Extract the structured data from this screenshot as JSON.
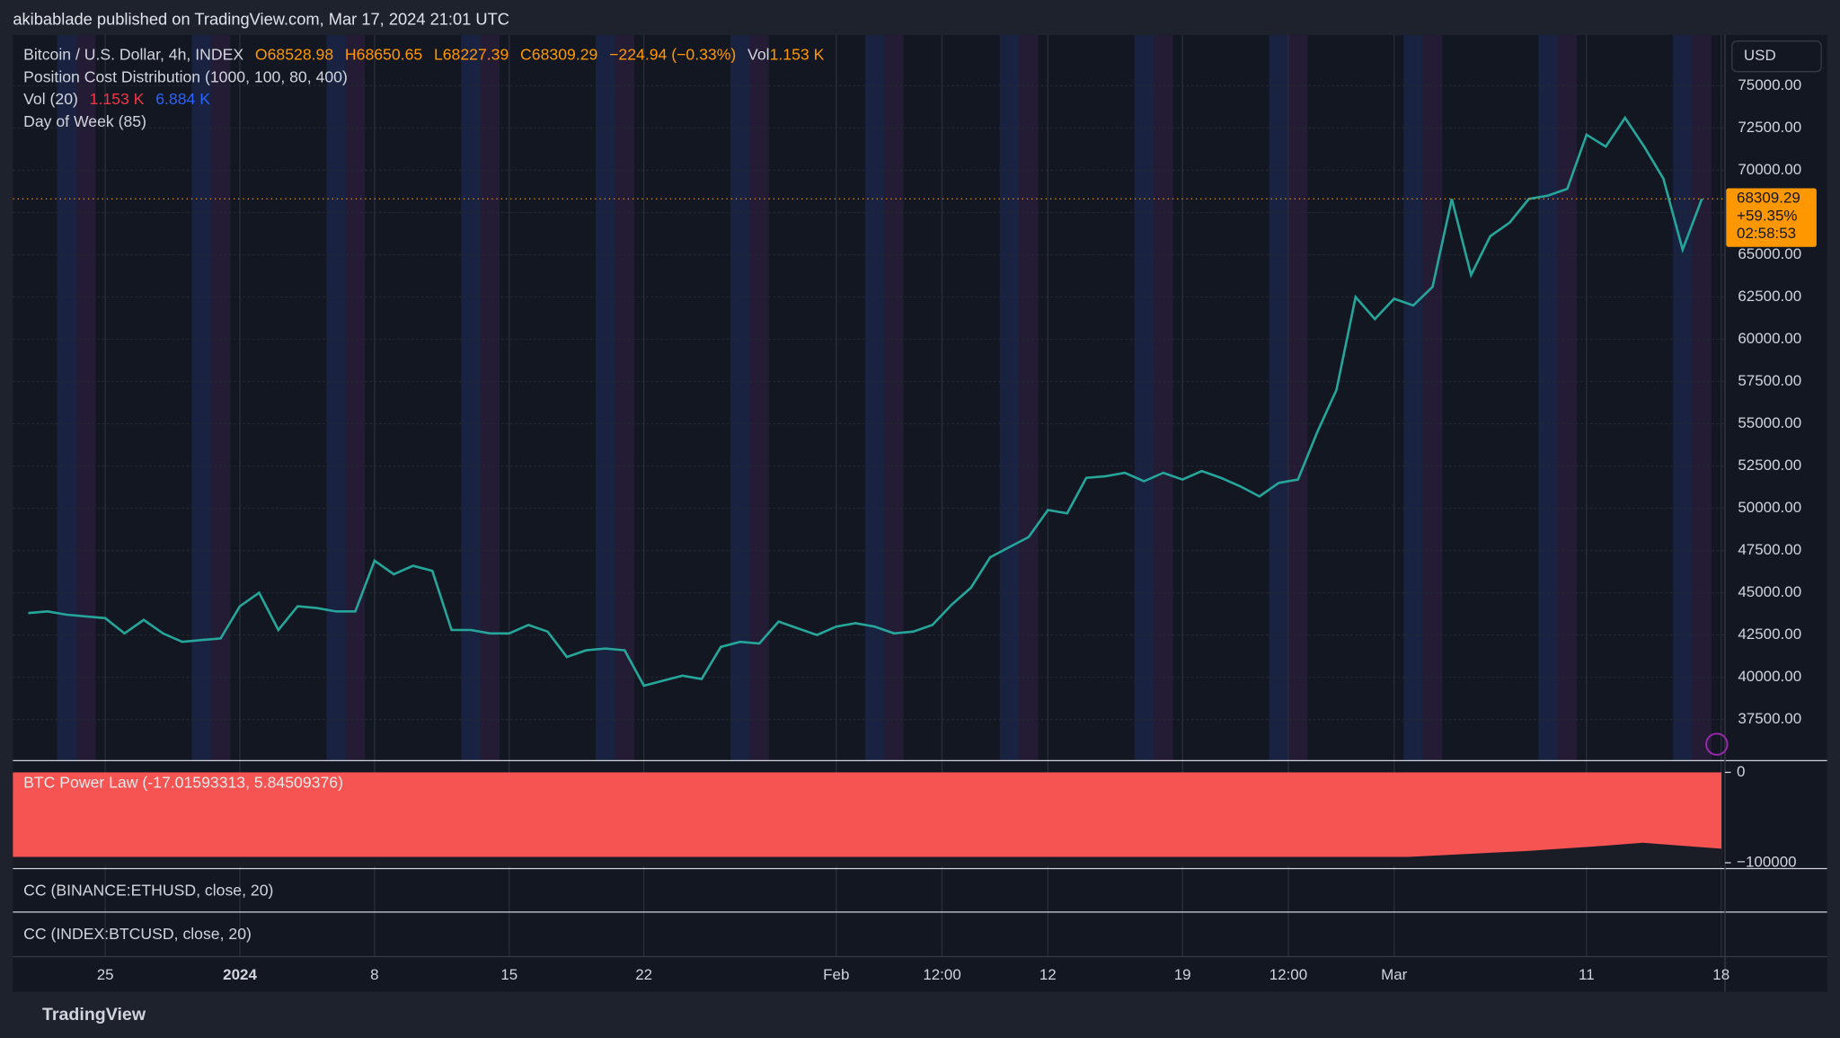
{
  "header": {
    "publisher": "akibablade published on TradingView.com, Mar 17, 2024 21:01 UTC"
  },
  "legend": {
    "symbol": "Bitcoin / U.S. Dollar, 4h, INDEX",
    "open": "O68528.98",
    "high": "H68650.65",
    "low": "L68227.39",
    "close": "C68309.29",
    "change": "−224.94 (−0.33%)",
    "vol_label": "Vol",
    "vol_value": "1.153 K"
  },
  "indicators": {
    "pcd": "Position Cost Distribution (1000, 100, 80, 400)",
    "vol": "Vol (20)",
    "vol_a": "1.153 K",
    "vol_b": "6.884 K",
    "dow": "Day of Week (85)"
  },
  "chart_data": {
    "type": "line",
    "color": "#26a69a",
    "x": [
      0,
      1,
      2,
      3,
      4,
      5,
      6,
      7,
      8,
      9,
      10,
      11,
      12,
      13,
      14,
      15,
      16,
      17,
      18,
      19,
      20,
      21,
      22,
      23,
      24,
      25,
      26,
      27,
      28,
      29,
      30,
      31,
      32,
      33,
      34,
      35,
      36,
      37,
      38,
      39,
      40,
      41,
      42,
      43,
      44,
      45,
      46,
      47,
      48,
      49,
      50,
      51,
      52,
      53,
      54,
      55,
      56,
      57,
      58,
      59,
      60,
      61,
      62,
      63,
      64,
      65,
      66,
      67,
      68,
      69,
      70,
      71,
      72,
      73,
      74,
      75,
      76,
      77,
      78,
      79,
      80,
      81,
      82,
      83,
      84,
      85,
      86,
      87
    ],
    "values": [
      43800,
      43900,
      43700,
      43600,
      43500,
      42600,
      43400,
      42600,
      42100,
      42200,
      42300,
      44200,
      45000,
      42800,
      44200,
      44100,
      43900,
      43900,
      46900,
      46100,
      46600,
      46300,
      42800,
      42800,
      42600,
      42600,
      43100,
      42700,
      41200,
      41600,
      41700,
      41600,
      39500,
      39800,
      40100,
      39900,
      41800,
      42100,
      42000,
      43300,
      42900,
      42500,
      43000,
      43200,
      43000,
      42600,
      42700,
      43100,
      44300,
      45300,
      47100,
      47700,
      48300,
      49900,
      49700,
      51800,
      51900,
      52100,
      51600,
      52100,
      51700,
      52200,
      51800,
      51300,
      50700,
      51500,
      51700,
      54500,
      57000,
      62500,
      61200,
      62400,
      62000,
      63100,
      68300,
      63800,
      66100,
      66900,
      68300,
      68500,
      68900,
      72100,
      71400,
      73100,
      71400,
      69500,
      65300,
      68309.29
    ],
    "xlim": [
      -0.8,
      88.2
    ],
    "xticks": [
      {
        "value": 4,
        "label": "25"
      },
      {
        "value": 11,
        "label": "2024"
      },
      {
        "value": 18,
        "label": "8"
      },
      {
        "value": 25,
        "label": "15"
      },
      {
        "value": 32,
        "label": "22"
      },
      {
        "value": 42,
        "label": "Feb"
      },
      {
        "value": 47.5,
        "label": "12:00"
      },
      {
        "value": 53,
        "label": "12"
      },
      {
        "value": 60,
        "label": "19"
      },
      {
        "value": 65.5,
        "label": "12:00"
      },
      {
        "value": 71,
        "label": "Mar"
      },
      {
        "value": 81,
        "label": "11"
      },
      {
        "value": 88,
        "label": "18"
      }
    ],
    "ylim": [
      35070,
      77990
    ],
    "yticks": [
      {
        "value": 37500,
        "label": "37500.00"
      },
      {
        "value": 40000,
        "label": "40000.00"
      },
      {
        "value": 42500,
        "label": "42500.00"
      },
      {
        "value": 45000,
        "label": "45000.00"
      },
      {
        "value": 47500,
        "label": "47500.00"
      },
      {
        "value": 50000,
        "label": "50000.00"
      },
      {
        "value": 52500,
        "label": "52500.00"
      },
      {
        "value": 55000,
        "label": "55000.00"
      },
      {
        "value": 57500,
        "label": "57500.00"
      },
      {
        "value": 60000,
        "label": "60000.00"
      },
      {
        "value": 62500,
        "label": "62500.00"
      },
      {
        "value": 65000,
        "label": "65000.00"
      },
      {
        "value": 67500,
        "label": "67500.00"
      },
      {
        "value": 70000,
        "label": "70000.00"
      },
      {
        "value": 72500,
        "label": "72500.00"
      },
      {
        "value": 75000,
        "label": "75000.00"
      }
    ],
    "grid": true,
    "currency": "USD",
    "last_price": {
      "value": 68309.29,
      "label": "68309.29"
    },
    "change_label": "+59.35%",
    "countdown": "02:58:53"
  },
  "power_law": {
    "title": "BTC Power Law (-17.01593313, 5.84509376)",
    "ylim": [
      1300,
      -106500
    ],
    "yticks": [
      {
        "value": 0,
        "label": "0"
      },
      {
        "value": -100000,
        "label": "−100000"
      }
    ]
  },
  "panes": {
    "eth": "CC (BINANCE:ETHUSD, close, 20)",
    "btc": "CC (INDEX:BTCUSD, close, 20)"
  },
  "footer": {
    "brand": "TradingView"
  }
}
